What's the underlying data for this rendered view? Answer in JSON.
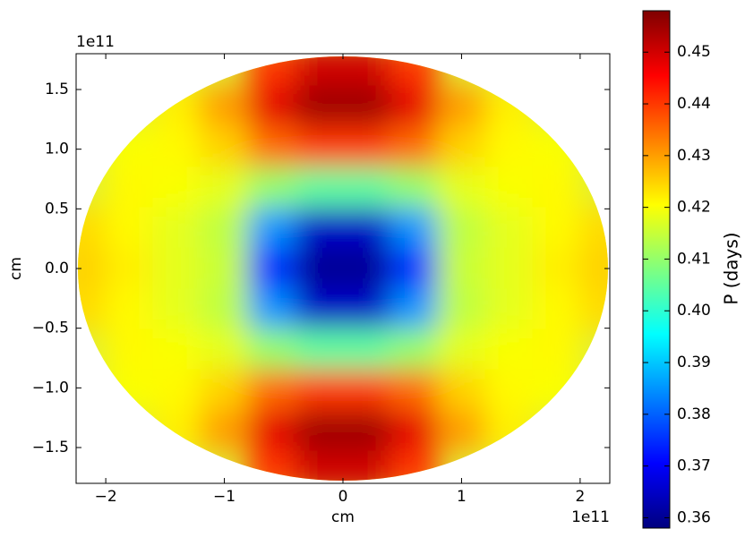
{
  "chart_data": {
    "type": "heatmap",
    "colormap": "jet",
    "x": [
      -2.2,
      -1.8,
      -1.4,
      -1.0,
      -0.6,
      -0.2,
      0.2,
      0.6,
      1.0,
      1.4,
      1.8,
      2.2
    ],
    "y": [
      1.7,
      1.36,
      1.02,
      0.68,
      0.34,
      0,
      -0.34,
      -0.68,
      -1.02,
      -1.36,
      -1.7
    ],
    "z": [
      [
        null,
        null,
        null,
        null,
        0.44,
        0.45,
        0.45,
        0.44,
        null,
        null,
        null,
        null
      ],
      [
        null,
        null,
        0.422,
        0.43,
        0.448,
        0.455,
        0.455,
        0.448,
        0.43,
        0.422,
        null,
        null
      ],
      [
        null,
        0.42,
        0.421,
        0.425,
        0.435,
        0.44,
        0.44,
        0.435,
        0.425,
        0.421,
        0.42,
        null
      ],
      [
        null,
        0.421,
        0.42,
        0.418,
        0.41,
        0.405,
        0.405,
        0.41,
        0.418,
        0.42,
        0.421,
        null
      ],
      [
        0.424,
        0.421,
        0.418,
        0.414,
        0.385,
        0.365,
        0.365,
        0.385,
        0.414,
        0.418,
        0.421,
        0.424
      ],
      [
        0.425,
        0.422,
        0.418,
        0.415,
        0.375,
        0.36,
        0.36,
        0.375,
        0.415,
        0.418,
        0.422,
        0.425
      ],
      [
        0.424,
        0.421,
        0.418,
        0.414,
        0.385,
        0.365,
        0.365,
        0.385,
        0.414,
        0.418,
        0.421,
        0.424
      ],
      [
        null,
        0.421,
        0.42,
        0.418,
        0.41,
        0.405,
        0.405,
        0.41,
        0.418,
        0.42,
        0.421,
        null
      ],
      [
        null,
        0.42,
        0.421,
        0.425,
        0.435,
        0.44,
        0.44,
        0.435,
        0.425,
        0.421,
        0.42,
        null
      ],
      [
        null,
        null,
        0.422,
        0.43,
        0.448,
        0.455,
        0.455,
        0.448,
        0.43,
        0.422,
        null,
        null
      ],
      [
        null,
        null,
        null,
        null,
        0.44,
        0.45,
        0.45,
        0.44,
        null,
        null,
        null,
        null
      ]
    ],
    "xlabel": "cm",
    "ylabel": "cm",
    "x_offset_label": "1e11",
    "y_offset_label": "1e11",
    "xlim": [
      -2.25,
      2.25
    ],
    "ylim": [
      -1.8,
      1.8
    ],
    "xticks": [
      {
        "value": -2,
        "label": "−2"
      },
      {
        "value": -1,
        "label": "−1"
      },
      0,
      1,
      2
    ],
    "yticks": [
      {
        "value": -1.5,
        "label": "−1.5"
      },
      {
        "value": -1.0,
        "label": "−1.0"
      },
      {
        "value": -0.5,
        "label": "−0.5"
      },
      {
        "value": 0,
        "label": "0.0"
      },
      0.5,
      {
        "value": 1.0,
        "label": "1.0"
      },
      1.5
    ],
    "colorbar_label": "P (days)",
    "clim": [
      0.358,
      0.458
    ],
    "cticks": [
      0.36,
      0.37,
      0.38,
      0.39,
      {
        "value": 0.4,
        "label": "0.40"
      },
      0.41,
      0.42,
      0.43,
      0.44,
      0.45
    ]
  }
}
